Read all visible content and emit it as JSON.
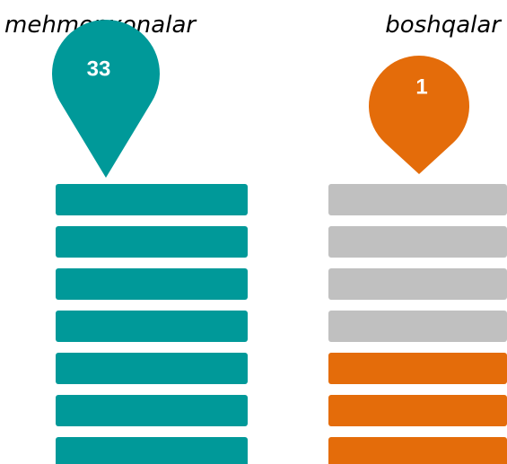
{
  "chart_data": {
    "type": "pin",
    "categories": [
      "mehmonxonalar",
      "boshqalar"
    ],
    "values": [
      33,
      1
    ],
    "colors": [
      "#009999",
      "#e46c0a"
    ],
    "empty_color": "#c0c0c0"
  }
}
